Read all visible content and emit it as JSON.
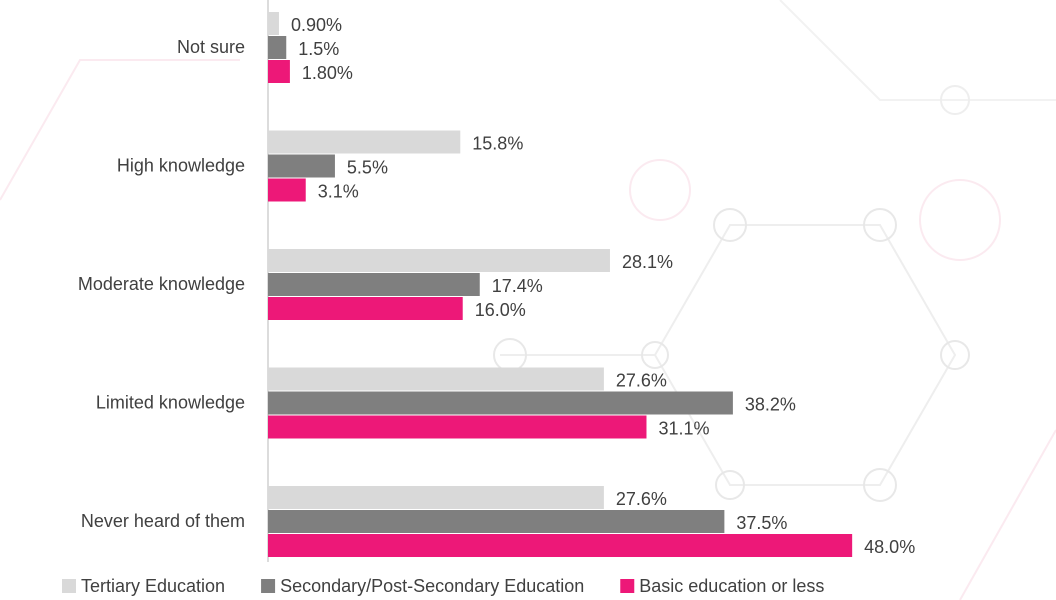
{
  "chart_data": {
    "type": "bar",
    "orientation": "horizontal",
    "categories": [
      "Not sure",
      "High knowledge",
      "Moderate knowledge",
      "Limited knowledge",
      "Never heard of them"
    ],
    "series": [
      {
        "name": "Tertiary Education",
        "color": "#d9d9d9",
        "values": [
          0.9,
          15.8,
          28.1,
          27.6,
          27.6
        ],
        "value_labels": [
          "0.90%",
          "15.8%",
          "28.1%",
          "27.6%",
          "27.6%"
        ]
      },
      {
        "name": "Secondary/Post-Secondary Education",
        "color": "#7f7f7f",
        "values": [
          1.5,
          5.5,
          17.4,
          38.2,
          37.5
        ],
        "value_labels": [
          "1.5%",
          "5.5%",
          "17.4%",
          "38.2%",
          "37.5%"
        ]
      },
      {
        "name": "Basic education or less",
        "color": "#ed1878",
        "values": [
          1.8,
          3.1,
          16.0,
          31.1,
          48.0
        ],
        "value_labels": [
          "1.80%",
          "3.1%",
          "16.0%",
          "31.1%",
          "48.0%"
        ]
      }
    ],
    "legend": "bottom"
  }
}
